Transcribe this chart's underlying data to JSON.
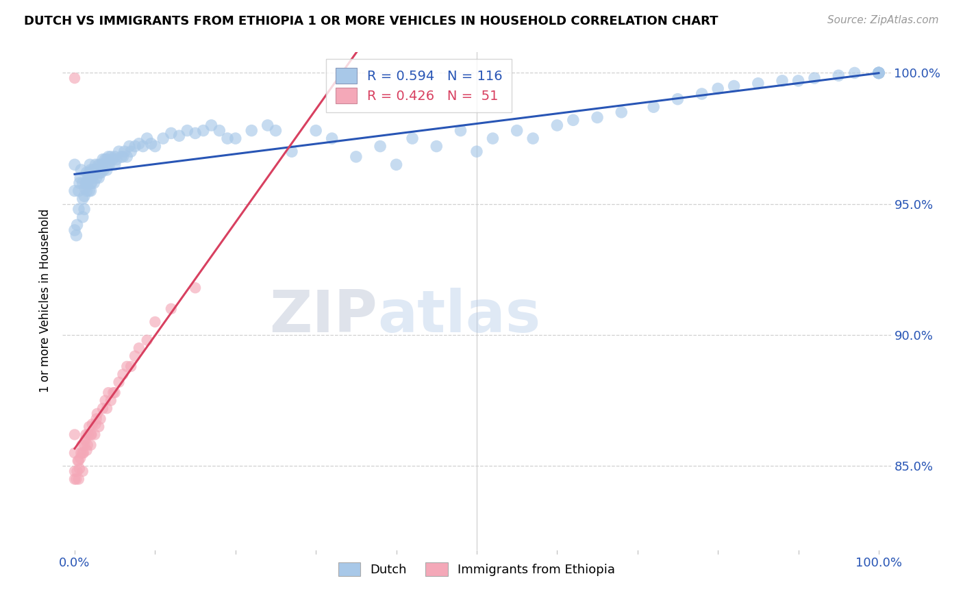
{
  "title": "DUTCH VS IMMIGRANTS FROM ETHIOPIA 1 OR MORE VEHICLES IN HOUSEHOLD CORRELATION CHART",
  "source": "Source: ZipAtlas.com",
  "ylabel": "1 or more Vehicles in Household",
  "xlim": [
    -0.015,
    1.015
  ],
  "ylim": [
    0.818,
    1.008
  ],
  "x_tick_positions": [
    0.0,
    0.1,
    0.2,
    0.3,
    0.4,
    0.5,
    0.6,
    0.7,
    0.8,
    0.9,
    1.0
  ],
  "x_tick_labels": [
    "0.0%",
    "",
    "",
    "",
    "",
    "",
    "",
    "",
    "",
    "",
    "100.0%"
  ],
  "y_tick_positions": [
    0.85,
    0.9,
    0.95,
    1.0
  ],
  "y_tick_labels": [
    "85.0%",
    "90.0%",
    "95.0%",
    "100.0%"
  ],
  "legend_labels": [
    "Dutch",
    "Immigrants from Ethiopia"
  ],
  "R_dutch": 0.594,
  "N_dutch": 116,
  "R_ethiopia": 0.426,
  "N_ethiopia": 51,
  "dutch_color": "#a8c8e8",
  "ethiopia_color": "#f4a8b8",
  "dutch_line_color": "#2855b5",
  "ethiopia_line_color": "#d84060",
  "watermark_zip": "ZIP",
  "watermark_atlas": "atlas",
  "grid_color": "#d0d0d0",
  "title_fontsize": 13,
  "tick_fontsize": 13,
  "legend_fontsize": 14,
  "dutch_x": [
    0.0,
    0.0,
    0.0,
    0.002,
    0.003,
    0.005,
    0.005,
    0.006,
    0.007,
    0.008,
    0.01,
    0.01,
    0.01,
    0.012,
    0.012,
    0.013,
    0.014,
    0.015,
    0.015,
    0.016,
    0.017,
    0.018,
    0.018,
    0.019,
    0.02,
    0.02,
    0.02,
    0.021,
    0.022,
    0.023,
    0.024,
    0.025,
    0.026,
    0.027,
    0.028,
    0.03,
    0.03,
    0.031,
    0.032,
    0.033,
    0.034,
    0.035,
    0.036,
    0.038,
    0.04,
    0.04,
    0.041,
    0.042,
    0.043,
    0.045,
    0.047,
    0.05,
    0.05,
    0.052,
    0.055,
    0.058,
    0.06,
    0.062,
    0.065,
    0.068,
    0.07,
    0.075,
    0.08,
    0.085,
    0.09,
    0.095,
    0.1,
    0.11,
    0.12,
    0.13,
    0.14,
    0.15,
    0.16,
    0.17,
    0.18,
    0.19,
    0.2,
    0.22,
    0.24,
    0.25,
    0.27,
    0.3,
    0.32,
    0.35,
    0.38,
    0.4,
    0.42,
    0.45,
    0.48,
    0.5,
    0.52,
    0.55,
    0.57,
    0.6,
    0.62,
    0.65,
    0.68,
    0.72,
    0.75,
    0.78,
    0.8,
    0.82,
    0.85,
    0.88,
    0.9,
    0.92,
    0.95,
    0.97,
    1.0,
    1.0,
    1.0,
    1.0,
    1.0,
    1.0,
    1.0,
    1.0
  ],
  "dutch_y": [
    0.94,
    0.955,
    0.965,
    0.938,
    0.942,
    0.948,
    0.955,
    0.958,
    0.96,
    0.963,
    0.945,
    0.952,
    0.958,
    0.948,
    0.953,
    0.956,
    0.958,
    0.955,
    0.962,
    0.958,
    0.96,
    0.955,
    0.962,
    0.965,
    0.955,
    0.958,
    0.963,
    0.958,
    0.96,
    0.963,
    0.958,
    0.962,
    0.965,
    0.96,
    0.963,
    0.96,
    0.965,
    0.962,
    0.965,
    0.962,
    0.965,
    0.967,
    0.963,
    0.967,
    0.963,
    0.967,
    0.965,
    0.968,
    0.965,
    0.968,
    0.967,
    0.965,
    0.968,
    0.967,
    0.97,
    0.968,
    0.968,
    0.97,
    0.968,
    0.972,
    0.97,
    0.972,
    0.973,
    0.972,
    0.975,
    0.973,
    0.972,
    0.975,
    0.977,
    0.976,
    0.978,
    0.977,
    0.978,
    0.98,
    0.978,
    0.975,
    0.975,
    0.978,
    0.98,
    0.978,
    0.97,
    0.978,
    0.975,
    0.968,
    0.972,
    0.965,
    0.975,
    0.972,
    0.978,
    0.97,
    0.975,
    0.978,
    0.975,
    0.98,
    0.982,
    0.983,
    0.985,
    0.987,
    0.99,
    0.992,
    0.994,
    0.995,
    0.996,
    0.997,
    0.997,
    0.998,
    0.999,
    1.0,
    1.0,
    1.0,
    1.0,
    1.0,
    1.0,
    1.0,
    1.0,
    1.0
  ],
  "eth_x": [
    0.0,
    0.0,
    0.0,
    0.0,
    0.0,
    0.002,
    0.003,
    0.004,
    0.005,
    0.005,
    0.006,
    0.007,
    0.008,
    0.009,
    0.01,
    0.01,
    0.011,
    0.012,
    0.013,
    0.014,
    0.015,
    0.016,
    0.017,
    0.018,
    0.02,
    0.02,
    0.021,
    0.022,
    0.025,
    0.026,
    0.027,
    0.028,
    0.03,
    0.032,
    0.035,
    0.038,
    0.04,
    0.042,
    0.045,
    0.048,
    0.05,
    0.055,
    0.06,
    0.065,
    0.07,
    0.075,
    0.08,
    0.09,
    0.1,
    0.12,
    0.15
  ],
  "eth_y": [
    0.845,
    0.848,
    0.855,
    0.862,
    0.998,
    0.845,
    0.848,
    0.852,
    0.845,
    0.852,
    0.849,
    0.853,
    0.855,
    0.858,
    0.848,
    0.855,
    0.855,
    0.858,
    0.86,
    0.862,
    0.856,
    0.858,
    0.862,
    0.865,
    0.858,
    0.862,
    0.862,
    0.866,
    0.862,
    0.866,
    0.868,
    0.87,
    0.865,
    0.868,
    0.872,
    0.875,
    0.872,
    0.878,
    0.875,
    0.878,
    0.878,
    0.882,
    0.885,
    0.888,
    0.888,
    0.892,
    0.895,
    0.898,
    0.905,
    0.91,
    0.918
  ]
}
